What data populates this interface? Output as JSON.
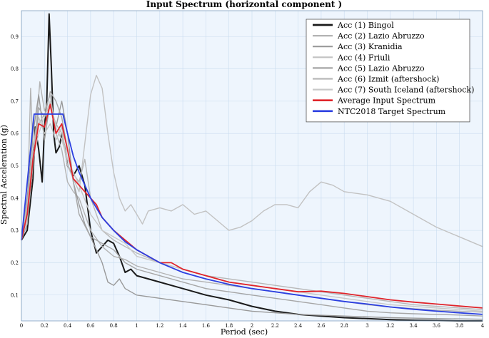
{
  "chart_data": {
    "type": "line",
    "title": "Input Spectrum (horizontal component )",
    "xlabel": "Period (sec)",
    "ylabel": "Spectral Acceleration (g)",
    "xlim": [
      0,
      4
    ],
    "ylim": [
      0.02,
      0.98
    ],
    "x_ticks": [
      0,
      0.2,
      0.4,
      0.6,
      0.8,
      1,
      1.2,
      1.4,
      1.6,
      1.8,
      2,
      2.2,
      2.4,
      2.6,
      2.8,
      3,
      3.2,
      3.4,
      3.6,
      3.8,
      4
    ],
    "y_ticks": [
      0.1,
      0.2,
      0.3,
      0.4,
      0.5,
      0.6,
      0.7,
      0.8,
      0.9
    ],
    "grid": true,
    "legend_position": "top-right",
    "colors": {
      "background": "#eef5fd",
      "grid": "#c9dcef",
      "red": "#e0242a",
      "blue": "#2b3fe0",
      "black": "#1a1a1a"
    },
    "series": [
      {
        "name": "Acc (1) Bingol",
        "color": "#1a1a1a",
        "width": 2.0,
        "points": [
          [
            0,
            0.27
          ],
          [
            0.05,
            0.3
          ],
          [
            0.1,
            0.46
          ],
          [
            0.12,
            0.62
          ],
          [
            0.15,
            0.55
          ],
          [
            0.18,
            0.45
          ],
          [
            0.2,
            0.62
          ],
          [
            0.22,
            0.7
          ],
          [
            0.24,
            0.97
          ],
          [
            0.26,
            0.8
          ],
          [
            0.28,
            0.6
          ],
          [
            0.3,
            0.54
          ],
          [
            0.33,
            0.56
          ],
          [
            0.35,
            0.6
          ],
          [
            0.38,
            0.55
          ],
          [
            0.4,
            0.5
          ],
          [
            0.45,
            0.47
          ],
          [
            0.5,
            0.5
          ],
          [
            0.55,
            0.44
          ],
          [
            0.6,
            0.3
          ],
          [
            0.65,
            0.23
          ],
          [
            0.7,
            0.25
          ],
          [
            0.75,
            0.27
          ],
          [
            0.8,
            0.26
          ],
          [
            0.85,
            0.22
          ],
          [
            0.9,
            0.17
          ],
          [
            0.95,
            0.18
          ],
          [
            1.0,
            0.16
          ],
          [
            1.1,
            0.15
          ],
          [
            1.2,
            0.14
          ],
          [
            1.4,
            0.12
          ],
          [
            1.6,
            0.1
          ],
          [
            1.8,
            0.085
          ],
          [
            2.0,
            0.065
          ],
          [
            2.2,
            0.05
          ],
          [
            2.4,
            0.04
          ],
          [
            2.6,
            0.035
          ],
          [
            2.8,
            0.03
          ],
          [
            3.0,
            0.027
          ],
          [
            3.2,
            0.024
          ],
          [
            3.4,
            0.022
          ],
          [
            3.6,
            0.021
          ],
          [
            3.8,
            0.02
          ],
          [
            4.0,
            0.02
          ]
        ]
      },
      {
        "name": "Acc (2) Lazio Abruzzo",
        "color": "#b3b3b3",
        "width": 1.4,
        "points": [
          [
            0,
            0.27
          ],
          [
            0.05,
            0.35
          ],
          [
            0.08,
            0.74
          ],
          [
            0.1,
            0.55
          ],
          [
            0.13,
            0.63
          ],
          [
            0.16,
            0.76
          ],
          [
            0.2,
            0.67
          ],
          [
            0.25,
            0.72
          ],
          [
            0.3,
            0.6
          ],
          [
            0.35,
            0.55
          ],
          [
            0.4,
            0.45
          ],
          [
            0.45,
            0.42
          ],
          [
            0.5,
            0.4
          ],
          [
            0.55,
            0.35
          ],
          [
            0.6,
            0.3
          ],
          [
            0.7,
            0.25
          ],
          [
            0.8,
            0.22
          ],
          [
            0.9,
            0.21
          ],
          [
            1.0,
            0.19
          ],
          [
            1.2,
            0.17
          ],
          [
            1.4,
            0.15
          ],
          [
            1.6,
            0.14
          ],
          [
            1.8,
            0.13
          ],
          [
            2.0,
            0.12
          ],
          [
            2.2,
            0.11
          ],
          [
            2.4,
            0.1
          ],
          [
            2.6,
            0.09
          ],
          [
            2.8,
            0.08
          ],
          [
            3.0,
            0.07
          ],
          [
            3.2,
            0.063
          ],
          [
            3.4,
            0.058
          ],
          [
            3.6,
            0.053
          ],
          [
            3.8,
            0.05
          ],
          [
            4.0,
            0.047
          ]
        ]
      },
      {
        "name": "Acc (3) Kranidia",
        "color": "#999999",
        "width": 1.4,
        "points": [
          [
            0,
            0.27
          ],
          [
            0.05,
            0.4
          ],
          [
            0.1,
            0.6
          ],
          [
            0.15,
            0.72
          ],
          [
            0.2,
            0.58
          ],
          [
            0.25,
            0.7
          ],
          [
            0.3,
            0.62
          ],
          [
            0.35,
            0.7
          ],
          [
            0.4,
            0.6
          ],
          [
            0.45,
            0.45
          ],
          [
            0.5,
            0.38
          ],
          [
            0.55,
            0.32
          ],
          [
            0.6,
            0.28
          ],
          [
            0.7,
            0.2
          ],
          [
            0.75,
            0.14
          ],
          [
            0.8,
            0.13
          ],
          [
            0.85,
            0.15
          ],
          [
            0.9,
            0.12
          ],
          [
            1.0,
            0.1
          ],
          [
            1.2,
            0.09
          ],
          [
            1.4,
            0.08
          ],
          [
            1.6,
            0.07
          ],
          [
            1.8,
            0.06
          ],
          [
            2.0,
            0.05
          ],
          [
            2.4,
            0.04
          ],
          [
            2.8,
            0.035
          ],
          [
            3.2,
            0.03
          ],
          [
            3.6,
            0.027
          ],
          [
            4.0,
            0.025
          ]
        ]
      },
      {
        "name": "Acc (4) Friuli",
        "color": "#c2c2c2",
        "width": 1.4,
        "points": [
          [
            0,
            0.27
          ],
          [
            0.05,
            0.38
          ],
          [
            0.1,
            0.55
          ],
          [
            0.15,
            0.65
          ],
          [
            0.2,
            0.6
          ],
          [
            0.25,
            0.63
          ],
          [
            0.3,
            0.58
          ],
          [
            0.35,
            0.62
          ],
          [
            0.4,
            0.5
          ],
          [
            0.5,
            0.42
          ],
          [
            0.6,
            0.72
          ],
          [
            0.65,
            0.78
          ],
          [
            0.7,
            0.74
          ],
          [
            0.75,
            0.6
          ],
          [
            0.8,
            0.48
          ],
          [
            0.85,
            0.4
          ],
          [
            0.9,
            0.36
          ],
          [
            0.95,
            0.38
          ],
          [
            1.0,
            0.35
          ],
          [
            1.05,
            0.32
          ],
          [
            1.1,
            0.36
          ],
          [
            1.2,
            0.37
          ],
          [
            1.3,
            0.36
          ],
          [
            1.4,
            0.38
          ],
          [
            1.5,
            0.35
          ],
          [
            1.6,
            0.36
          ],
          [
            1.7,
            0.33
          ],
          [
            1.8,
            0.3
          ],
          [
            1.9,
            0.31
          ],
          [
            2.0,
            0.33
          ],
          [
            2.1,
            0.36
          ],
          [
            2.2,
            0.38
          ],
          [
            2.3,
            0.38
          ],
          [
            2.4,
            0.37
          ],
          [
            2.5,
            0.42
          ],
          [
            2.6,
            0.45
          ],
          [
            2.7,
            0.44
          ],
          [
            2.8,
            0.42
          ],
          [
            3.0,
            0.41
          ],
          [
            3.2,
            0.39
          ],
          [
            3.4,
            0.35
          ],
          [
            3.6,
            0.31
          ],
          [
            3.8,
            0.28
          ],
          [
            4.0,
            0.25
          ]
        ]
      },
      {
        "name": "Acc (5) Lazio Abruzzo",
        "color": "#a6a6a6",
        "width": 1.4,
        "points": [
          [
            0,
            0.27
          ],
          [
            0.05,
            0.32
          ],
          [
            0.1,
            0.5
          ],
          [
            0.15,
            0.68
          ],
          [
            0.2,
            0.65
          ],
          [
            0.25,
            0.73
          ],
          [
            0.3,
            0.7
          ],
          [
            0.35,
            0.65
          ],
          [
            0.4,
            0.55
          ],
          [
            0.5,
            0.35
          ],
          [
            0.6,
            0.28
          ],
          [
            0.7,
            0.26
          ],
          [
            0.8,
            0.24
          ],
          [
            0.9,
            0.2
          ],
          [
            1.0,
            0.18
          ],
          [
            1.2,
            0.16
          ],
          [
            1.4,
            0.14
          ],
          [
            1.6,
            0.12
          ],
          [
            1.8,
            0.11
          ],
          [
            2.0,
            0.1
          ],
          [
            2.2,
            0.09
          ],
          [
            2.4,
            0.08
          ],
          [
            2.6,
            0.07
          ],
          [
            2.8,
            0.06
          ],
          [
            3.0,
            0.05
          ],
          [
            3.2,
            0.045
          ],
          [
            3.4,
            0.042
          ],
          [
            3.6,
            0.04
          ],
          [
            3.8,
            0.038
          ],
          [
            4.0,
            0.035
          ]
        ]
      },
      {
        "name": "Acc (6) Izmit (aftershock)",
        "color": "#b8b8b8",
        "width": 1.4,
        "points": [
          [
            0,
            0.27
          ],
          [
            0.05,
            0.36
          ],
          [
            0.1,
            0.55
          ],
          [
            0.15,
            0.63
          ],
          [
            0.2,
            0.66
          ],
          [
            0.25,
            0.68
          ],
          [
            0.3,
            0.63
          ],
          [
            0.35,
            0.6
          ],
          [
            0.4,
            0.5
          ],
          [
            0.5,
            0.45
          ],
          [
            0.55,
            0.52
          ],
          [
            0.6,
            0.4
          ],
          [
            0.7,
            0.3
          ],
          [
            0.8,
            0.27
          ],
          [
            0.9,
            0.25
          ],
          [
            1.0,
            0.23
          ],
          [
            1.2,
            0.2
          ],
          [
            1.4,
            0.18
          ],
          [
            1.6,
            0.16
          ],
          [
            1.8,
            0.15
          ],
          [
            2.0,
            0.14
          ],
          [
            2.2,
            0.13
          ],
          [
            2.4,
            0.12
          ],
          [
            2.6,
            0.11
          ],
          [
            2.8,
            0.1
          ],
          [
            3.0,
            0.09
          ],
          [
            3.2,
            0.08
          ],
          [
            3.4,
            0.07
          ],
          [
            3.6,
            0.065
          ],
          [
            3.8,
            0.06
          ],
          [
            4.0,
            0.055
          ]
        ]
      },
      {
        "name": "Acc (7) South Iceland (aftershock)",
        "color": "#c8c8c8",
        "width": 1.4,
        "points": [
          [
            0,
            0.27
          ],
          [
            0.05,
            0.34
          ],
          [
            0.1,
            0.52
          ],
          [
            0.15,
            0.6
          ],
          [
            0.2,
            0.65
          ],
          [
            0.25,
            0.7
          ],
          [
            0.3,
            0.62
          ],
          [
            0.35,
            0.58
          ],
          [
            0.4,
            0.52
          ],
          [
            0.5,
            0.44
          ],
          [
            0.6,
            0.35
          ],
          [
            0.7,
            0.3
          ],
          [
            0.8,
            0.28
          ],
          [
            0.9,
            0.26
          ],
          [
            1.0,
            0.22
          ],
          [
            1.2,
            0.2
          ],
          [
            1.4,
            0.18
          ],
          [
            1.6,
            0.16
          ],
          [
            1.8,
            0.14
          ],
          [
            2.0,
            0.13
          ],
          [
            2.2,
            0.12
          ],
          [
            2.4,
            0.11
          ],
          [
            2.6,
            0.1
          ],
          [
            2.8,
            0.09
          ],
          [
            3.0,
            0.08
          ],
          [
            3.2,
            0.07
          ],
          [
            3.4,
            0.065
          ],
          [
            3.6,
            0.06
          ],
          [
            3.8,
            0.055
          ],
          [
            4.0,
            0.05
          ]
        ]
      },
      {
        "name": "Average Input Spectrum",
        "color": "#e0242a",
        "width": 1.8,
        "points": [
          [
            0,
            0.27
          ],
          [
            0.05,
            0.35
          ],
          [
            0.1,
            0.52
          ],
          [
            0.15,
            0.63
          ],
          [
            0.2,
            0.62
          ],
          [
            0.25,
            0.69
          ],
          [
            0.3,
            0.6
          ],
          [
            0.35,
            0.63
          ],
          [
            0.4,
            0.55
          ],
          [
            0.45,
            0.46
          ],
          [
            0.5,
            0.44
          ],
          [
            0.55,
            0.42
          ],
          [
            0.6,
            0.4
          ],
          [
            0.65,
            0.38
          ],
          [
            0.7,
            0.34
          ],
          [
            0.8,
            0.3
          ],
          [
            0.9,
            0.27
          ],
          [
            1.0,
            0.24
          ],
          [
            1.1,
            0.22
          ],
          [
            1.2,
            0.2
          ],
          [
            1.3,
            0.2
          ],
          [
            1.4,
            0.18
          ],
          [
            1.6,
            0.16
          ],
          [
            1.8,
            0.14
          ],
          [
            2.0,
            0.13
          ],
          [
            2.2,
            0.12
          ],
          [
            2.4,
            0.11
          ],
          [
            2.6,
            0.112
          ],
          [
            2.8,
            0.105
          ],
          [
            3.0,
            0.095
          ],
          [
            3.2,
            0.085
          ],
          [
            3.4,
            0.078
          ],
          [
            3.6,
            0.072
          ],
          [
            3.8,
            0.066
          ],
          [
            4.0,
            0.06
          ]
        ]
      },
      {
        "name": "NTC2018 Target Spectrum",
        "color": "#2b3fe0",
        "width": 1.8,
        "points": [
          [
            0,
            0.27
          ],
          [
            0.11,
            0.66
          ],
          [
            0.36,
            0.66
          ],
          [
            0.4,
            0.6
          ],
          [
            0.45,
            0.53
          ],
          [
            0.5,
            0.48
          ],
          [
            0.6,
            0.4
          ],
          [
            0.7,
            0.34
          ],
          [
            0.8,
            0.3
          ],
          [
            0.9,
            0.265
          ],
          [
            1.0,
            0.24
          ],
          [
            1.2,
            0.2
          ],
          [
            1.4,
            0.17
          ],
          [
            1.6,
            0.15
          ],
          [
            1.8,
            0.133
          ],
          [
            2.0,
            0.12
          ],
          [
            2.2,
            0.11
          ],
          [
            2.4,
            0.1
          ],
          [
            2.6,
            0.09
          ],
          [
            2.8,
            0.08
          ],
          [
            3.0,
            0.072
          ],
          [
            3.2,
            0.063
          ],
          [
            3.4,
            0.056
          ],
          [
            3.6,
            0.05
          ],
          [
            3.8,
            0.045
          ],
          [
            4.0,
            0.04
          ]
        ]
      }
    ]
  }
}
